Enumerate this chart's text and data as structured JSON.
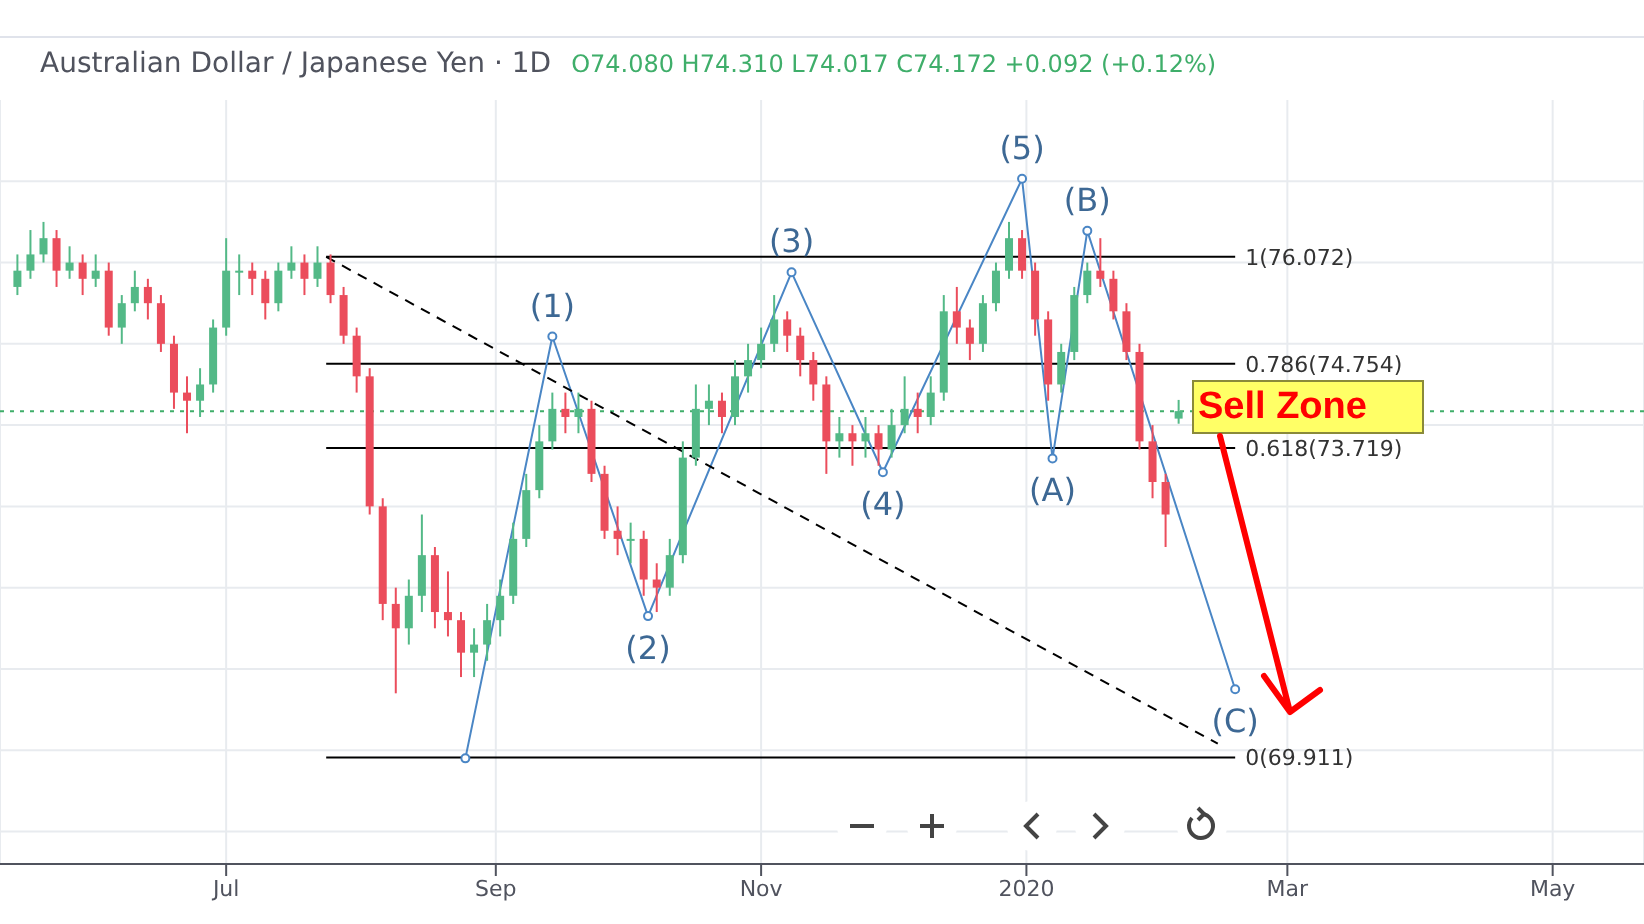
{
  "chart_data": {
    "type": "candlestick",
    "title": "Australian Dollar / Japanese Yen · 1D",
    "subtitle": "O74.080 H74.310 L74.017 C74.172 +0.092 (+0.12%)",
    "x": [
      "2019-05-14",
      "2019-05-17",
      "2019-05-20",
      "2019-05-23",
      "2019-05-26",
      "2019-05-29",
      "2019-06-01",
      "2019-06-04",
      "2019-06-07",
      "2019-06-10",
      "2019-06-13",
      "2019-06-16",
      "2019-06-19",
      "2019-06-22",
      "2019-06-25",
      "2019-06-28",
      "2019-07-01",
      "2019-07-04",
      "2019-07-07",
      "2019-07-10",
      "2019-07-13",
      "2019-07-16",
      "2019-07-19",
      "2019-07-22",
      "2019-07-25",
      "2019-07-28",
      "2019-07-31",
      "2019-08-03",
      "2019-08-06",
      "2019-08-09",
      "2019-08-12",
      "2019-08-15",
      "2019-08-18",
      "2019-08-21",
      "2019-08-24",
      "2019-08-27",
      "2019-08-30",
      "2019-09-02",
      "2019-09-05",
      "2019-09-08",
      "2019-09-11",
      "2019-09-14",
      "2019-09-17",
      "2019-09-20",
      "2019-09-23",
      "2019-09-26",
      "2019-09-29",
      "2019-10-02",
      "2019-10-05",
      "2019-10-08",
      "2019-10-11",
      "2019-10-14",
      "2019-10-17",
      "2019-10-20",
      "2019-10-23",
      "2019-10-26",
      "2019-10-29",
      "2019-11-01",
      "2019-11-04",
      "2019-11-07",
      "2019-11-10",
      "2019-11-13",
      "2019-11-16",
      "2019-11-19",
      "2019-11-22",
      "2019-11-25",
      "2019-11-28",
      "2019-12-01",
      "2019-12-04",
      "2019-12-07",
      "2019-12-10",
      "2019-12-13",
      "2019-12-16",
      "2019-12-19",
      "2019-12-22",
      "2019-12-25",
      "2019-12-28",
      "2019-12-31",
      "2020-01-03",
      "2020-01-06",
      "2020-01-09",
      "2020-01-12",
      "2020-01-15",
      "2020-01-18",
      "2020-01-21",
      "2020-01-24",
      "2020-01-27",
      "2020-01-30",
      "2020-02-02",
      "2020-02-05"
    ],
    "ohlc": [
      [
        75.7,
        76.1,
        75.6,
        75.9
      ],
      [
        75.9,
        76.4,
        75.8,
        76.1
      ],
      [
        76.1,
        76.5,
        76.0,
        76.3
      ],
      [
        76.3,
        76.4,
        75.7,
        75.9
      ],
      [
        75.9,
        76.2,
        75.8,
        76.0
      ],
      [
        76.0,
        76.1,
        75.6,
        75.8
      ],
      [
        75.8,
        76.1,
        75.7,
        75.9
      ],
      [
        75.9,
        76.0,
        75.1,
        75.2
      ],
      [
        75.2,
        75.6,
        75.0,
        75.5
      ],
      [
        75.5,
        75.9,
        75.4,
        75.7
      ],
      [
        75.7,
        75.8,
        75.3,
        75.5
      ],
      [
        75.5,
        75.6,
        74.9,
        75.0
      ],
      [
        75.0,
        75.1,
        74.2,
        74.4
      ],
      [
        74.4,
        74.6,
        73.9,
        74.3
      ],
      [
        74.3,
        74.7,
        74.1,
        74.5
      ],
      [
        74.5,
        75.3,
        74.4,
        75.2
      ],
      [
        75.2,
        76.3,
        75.1,
        75.9
      ],
      [
        75.9,
        76.1,
        75.6,
        75.9
      ],
      [
        75.9,
        76.0,
        75.6,
        75.8
      ],
      [
        75.8,
        75.9,
        75.3,
        75.5
      ],
      [
        75.5,
        76.0,
        75.4,
        75.9
      ],
      [
        75.9,
        76.2,
        75.8,
        76.0
      ],
      [
        76.0,
        76.1,
        75.6,
        75.8
      ],
      [
        75.8,
        76.2,
        75.7,
        76.0
      ],
      [
        76.0,
        76.1,
        75.5,
        75.6
      ],
      [
        75.6,
        75.7,
        75.0,
        75.1
      ],
      [
        75.1,
        75.2,
        74.4,
        74.6
      ],
      [
        74.6,
        74.7,
        72.9,
        73.0
      ],
      [
        73.0,
        73.1,
        71.6,
        71.8
      ],
      [
        71.8,
        72.0,
        70.7,
        71.5
      ],
      [
        71.5,
        72.1,
        71.3,
        71.9
      ],
      [
        71.9,
        72.9,
        71.7,
        72.4
      ],
      [
        72.4,
        72.5,
        71.5,
        71.7
      ],
      [
        71.7,
        72.2,
        71.4,
        71.6
      ],
      [
        71.6,
        71.7,
        70.9,
        71.2
      ],
      [
        71.2,
        71.5,
        70.9,
        71.3
      ],
      [
        71.3,
        71.8,
        71.1,
        71.6
      ],
      [
        71.6,
        72.1,
        71.4,
        71.9
      ],
      [
        71.9,
        72.8,
        71.8,
        72.6
      ],
      [
        72.6,
        73.4,
        72.5,
        73.2
      ],
      [
        73.2,
        74.0,
        73.1,
        73.8
      ],
      [
        73.8,
        74.4,
        73.7,
        74.2
      ],
      [
        74.2,
        74.4,
        73.9,
        74.1
      ],
      [
        74.1,
        74.4,
        73.9,
        74.2
      ],
      [
        74.2,
        74.3,
        73.3,
        73.4
      ],
      [
        73.4,
        73.5,
        72.6,
        72.7
      ],
      [
        72.7,
        73.0,
        72.4,
        72.6
      ],
      [
        72.6,
        72.8,
        72.3,
        72.6
      ],
      [
        72.6,
        72.7,
        71.9,
        72.1
      ],
      [
        72.1,
        72.3,
        71.7,
        72.0
      ],
      [
        72.0,
        72.6,
        71.9,
        72.4
      ],
      [
        72.4,
        73.8,
        72.3,
        73.6
      ],
      [
        73.6,
        74.5,
        73.5,
        74.2
      ],
      [
        74.2,
        74.5,
        74.0,
        74.3
      ],
      [
        74.3,
        74.4,
        73.9,
        74.1
      ],
      [
        74.1,
        74.8,
        74.0,
        74.6
      ],
      [
        74.6,
        75.0,
        74.4,
        74.8
      ],
      [
        74.8,
        75.2,
        74.7,
        75.0
      ],
      [
        75.0,
        75.6,
        74.9,
        75.3
      ],
      [
        75.3,
        75.4,
        74.9,
        75.1
      ],
      [
        75.1,
        75.2,
        74.6,
        74.8
      ],
      [
        74.8,
        74.9,
        74.3,
        74.5
      ],
      [
        74.5,
        74.6,
        73.4,
        73.8
      ],
      [
        73.8,
        74.1,
        73.6,
        73.9
      ],
      [
        73.9,
        74.0,
        73.5,
        73.8
      ],
      [
        73.8,
        74.1,
        73.6,
        73.9
      ],
      [
        73.9,
        74.0,
        73.5,
        73.7
      ],
      [
        73.7,
        74.2,
        73.6,
        74.0
      ],
      [
        74.0,
        74.6,
        73.9,
        74.2
      ],
      [
        74.2,
        74.4,
        73.9,
        74.1
      ],
      [
        74.1,
        74.6,
        74.0,
        74.4
      ],
      [
        74.4,
        75.6,
        74.3,
        75.4
      ],
      [
        75.4,
        75.7,
        75.0,
        75.2
      ],
      [
        75.2,
        75.3,
        74.8,
        75.0
      ],
      [
        75.0,
        75.6,
        74.9,
        75.5
      ],
      [
        75.5,
        76.0,
        75.4,
        75.9
      ],
      [
        75.9,
        76.5,
        75.8,
        76.3
      ],
      [
        76.3,
        76.4,
        75.8,
        75.9
      ],
      [
        75.9,
        76.0,
        75.1,
        75.3
      ],
      [
        75.3,
        75.4,
        74.3,
        74.5
      ],
      [
        74.5,
        75.0,
        74.4,
        74.9
      ],
      [
        74.9,
        75.7,
        74.8,
        75.6
      ],
      [
        75.6,
        76.0,
        75.5,
        75.9
      ],
      [
        75.9,
        76.3,
        75.7,
        75.8
      ],
      [
        75.8,
        75.9,
        75.3,
        75.4
      ],
      [
        75.4,
        75.5,
        74.8,
        74.9
      ],
      [
        74.9,
        75.0,
        73.7,
        73.8
      ],
      [
        73.8,
        74.0,
        73.1,
        73.3
      ],
      [
        73.3,
        73.4,
        72.5,
        72.9
      ],
      [
        74.08,
        74.31,
        74.017,
        74.172
      ]
    ],
    "series": [
      {
        "type": "line",
        "color": "#4a86c5",
        "marker": "circle",
        "x": [
          "2019-08-25",
          "2019-09-14",
          "2019-10-06",
          "2019-11-08",
          "2019-11-29",
          "2019-12-31",
          "2020-01-07",
          "2020-01-15",
          "2020-02-18"
        ],
        "values": [
          69.9,
          75.09,
          71.65,
          75.88,
          73.42,
          77.03,
          73.59,
          76.39,
          70.75
        ]
      },
      {
        "type": "line",
        "color": "#000000",
        "line_style": "dashed",
        "x": [
          "2019-07-24",
          "2020-02-14"
        ],
        "values": [
          76.07,
          70.08
        ]
      }
    ],
    "xlim": [
      "2019-05-10",
      "2020-05-22"
    ],
    "xticks": [
      {
        "value": "2019-07-01",
        "label": "Jul"
      },
      {
        "value": "2019-09-01",
        "label": "Sep"
      },
      {
        "value": "2019-11-01",
        "label": "Nov"
      },
      {
        "value": "2020-01-01",
        "label": "2020"
      },
      {
        "value": "2020-03-01",
        "label": "Mar"
      },
      {
        "value": "2020-05-01",
        "label": "May"
      }
    ],
    "ylim": [
      68.6,
      78.0
    ],
    "yticks": [
      {
        "value": 69,
        "label": null
      },
      {
        "value": 70,
        "label": null
      },
      {
        "value": 71,
        "label": null
      },
      {
        "value": 72,
        "label": null
      },
      {
        "value": 73,
        "label": null
      },
      {
        "value": 74,
        "label": null
      },
      {
        "value": 75,
        "label": null
      },
      {
        "value": 76,
        "label": null
      },
      {
        "value": 77,
        "label": null
      }
    ],
    "tick_labels": "x",
    "grid": true,
    "ref_lines": [
      {
        "axis": "y",
        "value": 76.072,
        "label": "1(76.072)",
        "color": "#000000"
      },
      {
        "axis": "y",
        "value": 74.754,
        "label": "0.786(74.754)",
        "color": "#000000"
      },
      {
        "axis": "y",
        "value": 73.719,
        "label": "0.618(73.719)",
        "color": "#000000"
      },
      {
        "axis": "y",
        "value": 69.911,
        "label": "0(69.911)",
        "color": "#000000"
      },
      {
        "axis": "y",
        "value": 74.172,
        "color": "#3fae6a",
        "line_style": "dotted"
      }
    ],
    "annotations": [
      {
        "text": "(1)",
        "x": "2019-09-14",
        "y": 75.09
      },
      {
        "text": "(2)",
        "x": "2019-10-06",
        "y": 71.65
      },
      {
        "text": "(3)",
        "x": "2019-11-08",
        "y": 75.88
      },
      {
        "text": "(4)",
        "x": "2019-11-29",
        "y": 73.42
      },
      {
        "text": "(5)",
        "x": "2019-12-31",
        "y": 77.03
      },
      {
        "text": "(A)",
        "x": "2020-01-07",
        "y": 73.59
      },
      {
        "text": "(B)",
        "x": "2020-01-15",
        "y": 76.39
      },
      {
        "text": "(C)",
        "x": "2020-02-18",
        "y": 70.75
      },
      "Sell Zone"
    ]
  }
}
